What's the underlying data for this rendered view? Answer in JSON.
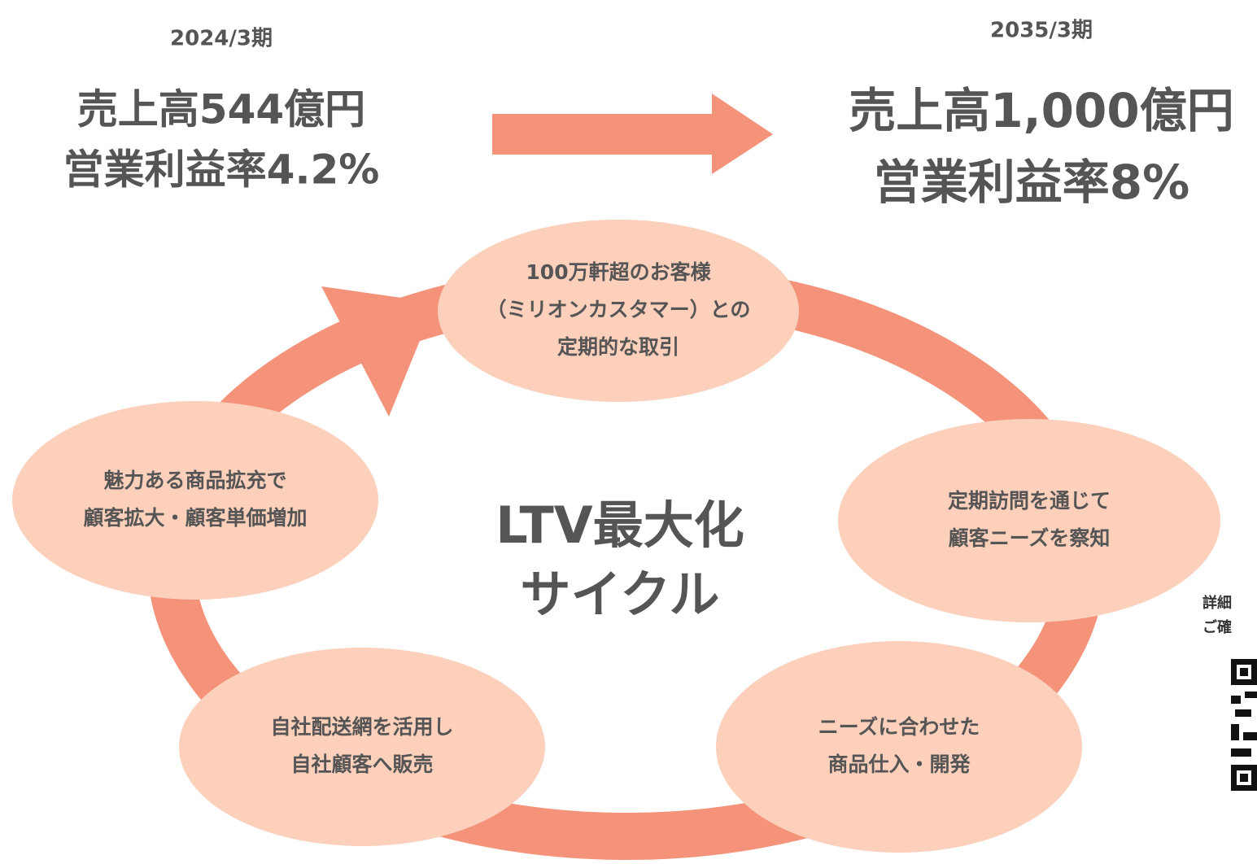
{
  "before": {
    "period": "2024/3期",
    "sales": "売上高544億円",
    "margin": "営業利益率4.2%"
  },
  "after": {
    "period": "2035/3期",
    "sales": "売上高1,000億円",
    "margin": "営業利益率8%"
  },
  "cycle": {
    "title": [
      "LTV最大化",
      "サイクル"
    ],
    "nodes": [
      {
        "lines": [
          "100万軒超のお客様",
          "（ミリオンカスタマー）との",
          "定期的な取引"
        ]
      },
      {
        "lines": [
          "定期訪問を通じて",
          "顧客ニーズを察知"
        ]
      },
      {
        "lines": [
          "ニーズに合わせた",
          "商品仕入・開発"
        ]
      },
      {
        "lines": [
          "自社配送網を活用し",
          "自社顧客へ販売"
        ]
      },
      {
        "lines": [
          "魅力ある商品拡充で",
          "顧客拡大・顧客単価増加"
        ]
      }
    ]
  },
  "note": [
    "詳細",
    "ご確"
  ]
}
